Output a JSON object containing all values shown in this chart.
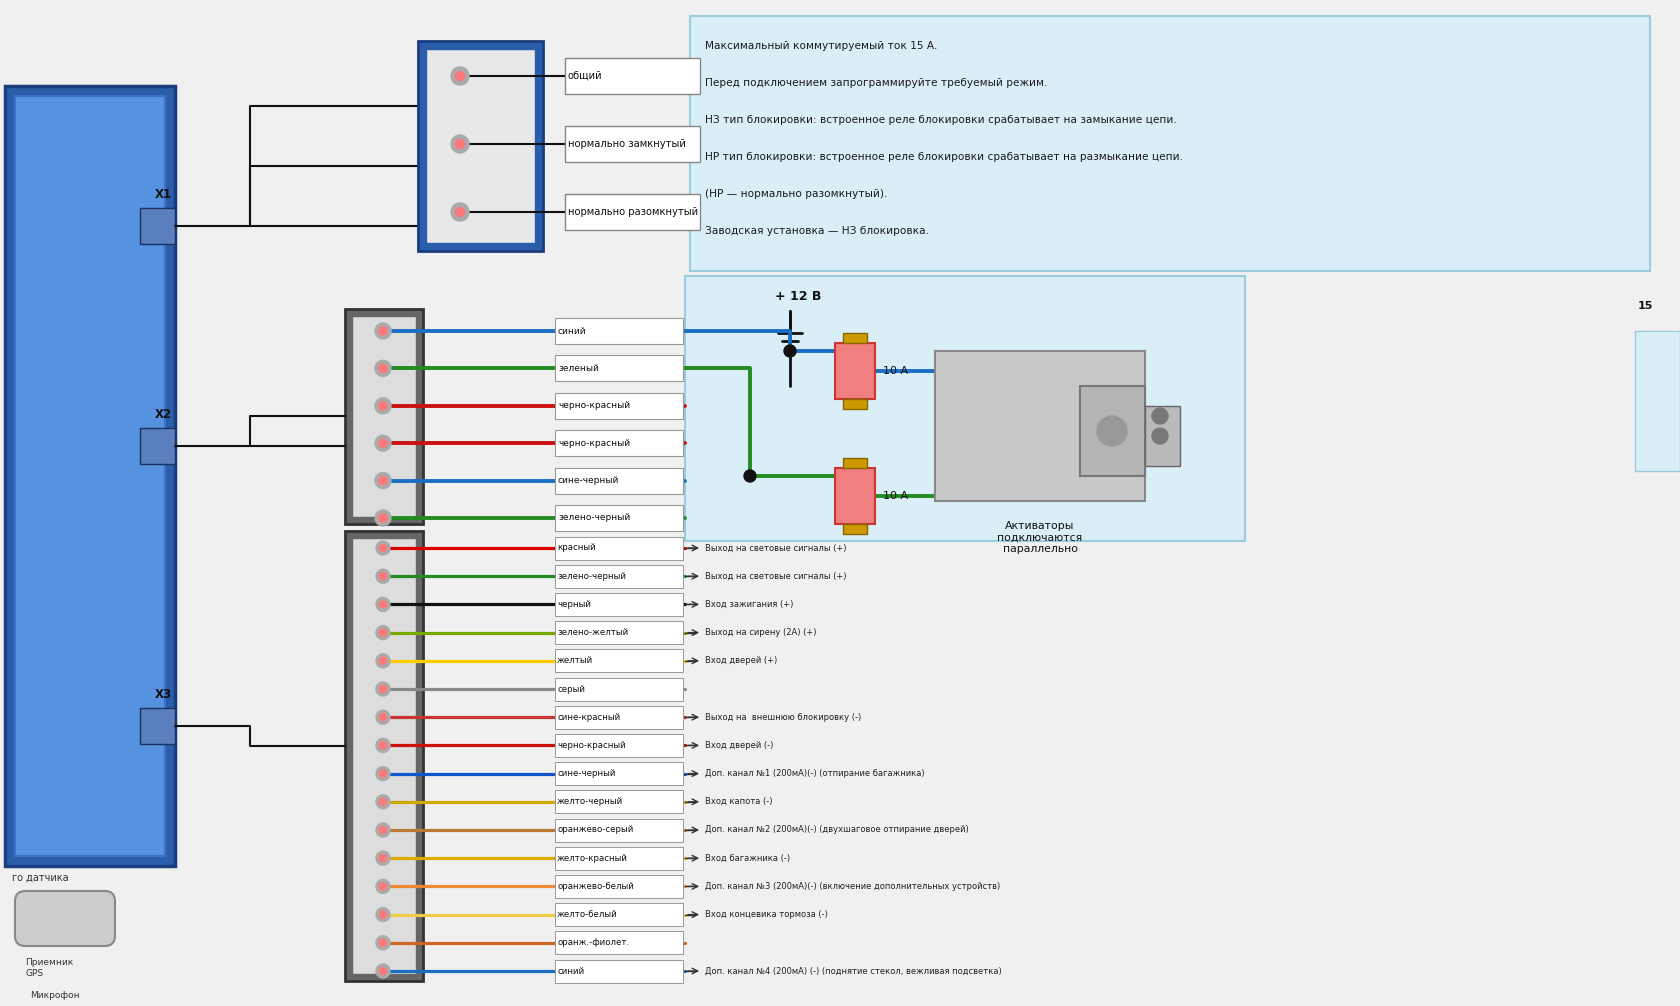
{
  "bg_color": "#f0f0f0",
  "info_box_color": "#daeef8",
  "unit_color_dark": "#2a5eaa",
  "unit_color_mid": "#3a72c8",
  "unit_color_light": "#5592e0",
  "info_text_lines": [
    "Максимальный коммутируемый ток 15 А.",
    "Перед подключением запрограммируйте требуемый режим.",
    "НЗ тип блокировки: встроенное реле блокировки срабатывает на замыкание цепи.",
    "НР тип блокировки: встроенное реле блокировки срабатывает на размыкание цепи.",
    "(НР — нормально разомкнутый).",
    "Заводская установка — НЗ блокировка."
  ],
  "relay_pins": [
    {
      "label": "общий"
    },
    {
      "label": "нормально замкнутый"
    },
    {
      "label": "нормально разомкнутый"
    }
  ],
  "x2_wires": [
    {
      "label": "синий",
      "color": "#1a6fc4"
    },
    {
      "label": "зеленый",
      "color": "#228b22"
    },
    {
      "label": "черно-красный",
      "color": "#cc1111"
    },
    {
      "label": "черно-красный",
      "color": "#cc1111"
    },
    {
      "label": "сине-черный",
      "color": "#1a6fc4"
    },
    {
      "label": "зелено-черный",
      "color": "#228b22"
    }
  ],
  "x3_wires": [
    {
      "label": "красный",
      "color": "#dd0000"
    },
    {
      "label": "зелено-черный",
      "color": "#228b22"
    },
    {
      "label": "черный",
      "color": "#111111"
    },
    {
      "label": "зелено-желтый",
      "color": "#77aa00"
    },
    {
      "label": "желтый",
      "color": "#ffcc00"
    },
    {
      "label": "серый",
      "color": "#888888"
    },
    {
      "label": "сине-красный",
      "color": "#cc3333"
    },
    {
      "label": "черно-красный",
      "color": "#cc1111"
    },
    {
      "label": "сине-черный",
      "color": "#1155cc"
    },
    {
      "label": "желто-черный",
      "color": "#ccaa00"
    },
    {
      "label": "оранжево-серый",
      "color": "#bb7733"
    },
    {
      "label": "желто-красный",
      "color": "#ddaa00"
    },
    {
      "label": "оранжево-белый",
      "color": "#ee8833"
    },
    {
      "label": "желто-белый",
      "color": "#eecc44"
    },
    {
      "label": "оранж.-фиолет.",
      "color": "#cc6622"
    },
    {
      "label": "синий",
      "color": "#1a6fc4"
    }
  ],
  "x3_right_labels": [
    "→ Выход на световые сигналы (+)",
    "→ Выход на световые сигналы (+)",
    "← Вход зажигания (+)",
    "→ Выход на сирену (2А) (+)",
    "← Вход дверей (+)",
    "",
    "→ Выход на  внешнюю блокировку (-)",
    "← Вход дверей (-)",
    "→ Доп. канал №1 (200мА)(-) (отпирание багажника)",
    "← Вход капота (-)",
    "→ Доп. канал №2 (200мА)(-) (двухшаговое отпирание дверей)",
    "← Вход багажника (-)",
    "→ Доп. канал №3 (200мА)(-) (включение дополнительных устройств)",
    "← Вход концевика тормоза (-)",
    "",
    "→ Доп. канал №4 (200мА) (-) (поднятие стекол, вежливая подсветка)"
  ],
  "connector_labels": [
    {
      "label": "X1",
      "y": 7.8
    },
    {
      "label": "X2",
      "y": 5.6
    },
    {
      "label": "X3",
      "y": 2.8
    }
  ],
  "fuse_voltage": "+ 12 В",
  "fuse_current": "10 А",
  "activator_text": "Активаторы\nподключаются\nпараллельно",
  "gps_text": "Приемник\nGPS",
  "mic_text": "Микрофон",
  "sensor_text": "го датчика"
}
